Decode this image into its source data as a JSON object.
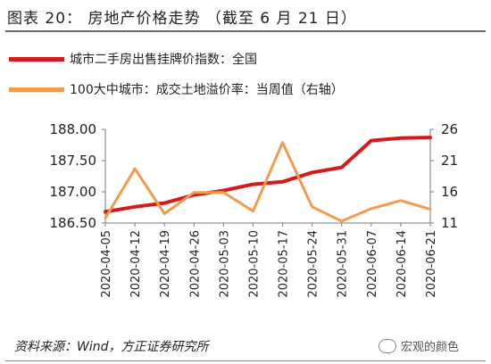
{
  "header": {
    "title": "图表 20：  房地产价格走势  （截至 6 月 21 日）"
  },
  "footer": {
    "source": "资料来源：Wind，方正证券研究所",
    "watermark": "宏观的颜色"
  },
  "chart_data": {
    "type": "line",
    "categories": [
      "2020-04-05",
      "2020-04-12",
      "2020-04-19",
      "2020-04-26",
      "2020-05-03",
      "2020-05-10",
      "2020-05-17",
      "2020-05-24",
      "2020-05-31",
      "2020-06-07",
      "2020-06-14",
      "2020-06-21"
    ],
    "series": [
      {
        "name": "城市二手房出售挂牌价指数：全国",
        "axis": "left",
        "color": "#d7191c",
        "values": [
          186.68,
          186.76,
          186.82,
          186.95,
          187.02,
          187.12,
          187.16,
          187.31,
          187.39,
          187.82,
          187.86,
          187.87
        ]
      },
      {
        "name": "100大中城市：成交土地溢价率：当周值（右轴）",
        "axis": "right",
        "color": "#f29b4c",
        "values": [
          11.8,
          19.7,
          12.5,
          15.9,
          15.9,
          12.9,
          23.9,
          13.6,
          11.3,
          13.3,
          14.6,
          13.2
        ]
      }
    ],
    "y_left": {
      "ylim": [
        186.5,
        188.0
      ],
      "ticks": [
        "186.50",
        "187.00",
        "187.50",
        "188.00"
      ]
    },
    "y_right": {
      "ylim": [
        11,
        26
      ],
      "ticks": [
        "11",
        "16",
        "21",
        "26"
      ]
    },
    "grid": false,
    "legend_position": "top"
  }
}
